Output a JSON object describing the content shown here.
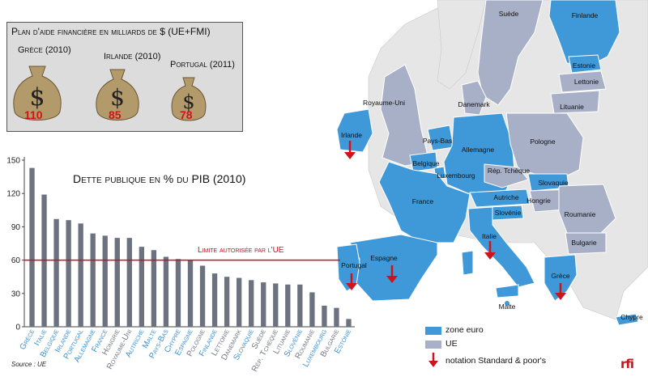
{
  "aid_panel": {
    "title": "Plan d'aide financière en milliards de $ (UE+FMI)",
    "items": [
      {
        "country": "Grèce (2010)",
        "amount": "110"
      },
      {
        "country": "Irlande (2010)",
        "amount": "85"
      },
      {
        "country": "Portugal (2011)",
        "amount": "78"
      }
    ]
  },
  "chart": {
    "title": "Dette publique en % du PIB (2010)",
    "limit_label": "Limite autorisée par l'UE",
    "source": "Source : UE"
  },
  "chart_data": {
    "type": "bar",
    "title": "Dette publique en % du PIB (2010)",
    "xlabel": "",
    "ylabel": "",
    "ylim": [
      0,
      150
    ],
    "yticks": [
      0,
      30,
      60,
      90,
      120,
      150
    ],
    "grid": false,
    "reference_line": {
      "value": 60,
      "label": "Limite autorisée par l'UE"
    },
    "categories": [
      "Grèce",
      "Italie",
      "Belgique",
      "Irlande",
      "Portugal",
      "Allemagne",
      "France",
      "Hongrie",
      "Royaume-Uni",
      "Autriche",
      "Malte",
      "Pays-Bas",
      "Chypre",
      "Espagne",
      "Pologne",
      "Finlande",
      "Lettonie",
      "Danemark",
      "Slovaquie",
      "Suède",
      "Rép. Tchèque",
      "Lituanie",
      "Slovénie",
      "Roumanie",
      "Luxembourg",
      "Bulgarie",
      "Estonie"
    ],
    "eurozone": [
      true,
      true,
      true,
      true,
      true,
      true,
      true,
      false,
      false,
      true,
      true,
      true,
      true,
      true,
      false,
      true,
      false,
      false,
      true,
      false,
      false,
      false,
      true,
      false,
      true,
      false,
      true
    ],
    "values": [
      143,
      119,
      97,
      96,
      93,
      84,
      82,
      80,
      80,
      72,
      69,
      63,
      61,
      60,
      55,
      48,
      45,
      44,
      42,
      40,
      39,
      38,
      38,
      31,
      19,
      17,
      7
    ]
  },
  "map": {
    "labels": [
      "Suède",
      "Finlande",
      "Estonie",
      "Lettonie",
      "Lituanie",
      "Royaume-Uni",
      "Danemark",
      "Irlande",
      "Pays-Bas",
      "Allemagne",
      "Pologne",
      "Belgique",
      "Luxembourg",
      "Rép. Tchèque",
      "Slovaquie",
      "France",
      "Autriche",
      "Hongrie",
      "Slovénie",
      "Roumanie",
      "Italie",
      "Bulgarie",
      "Portugal",
      "Espagne",
      "Grèce",
      "Malte",
      "Chypre"
    ]
  },
  "legend": {
    "euro_label": "zone euro",
    "eu_label": "UE",
    "rating_label": "notation Standard & poor's"
  },
  "colors": {
    "eurozone": "#3f98d8",
    "eu": "#a8b0c8",
    "non_eu": "#e6e6e6",
    "sea": "#ffffff",
    "rating": "#d0121b",
    "bar": "#6d7280",
    "euro_label_text": "#3a8fd0",
    "non_euro_label_text": "#707580"
  },
  "logo": "rfi"
}
